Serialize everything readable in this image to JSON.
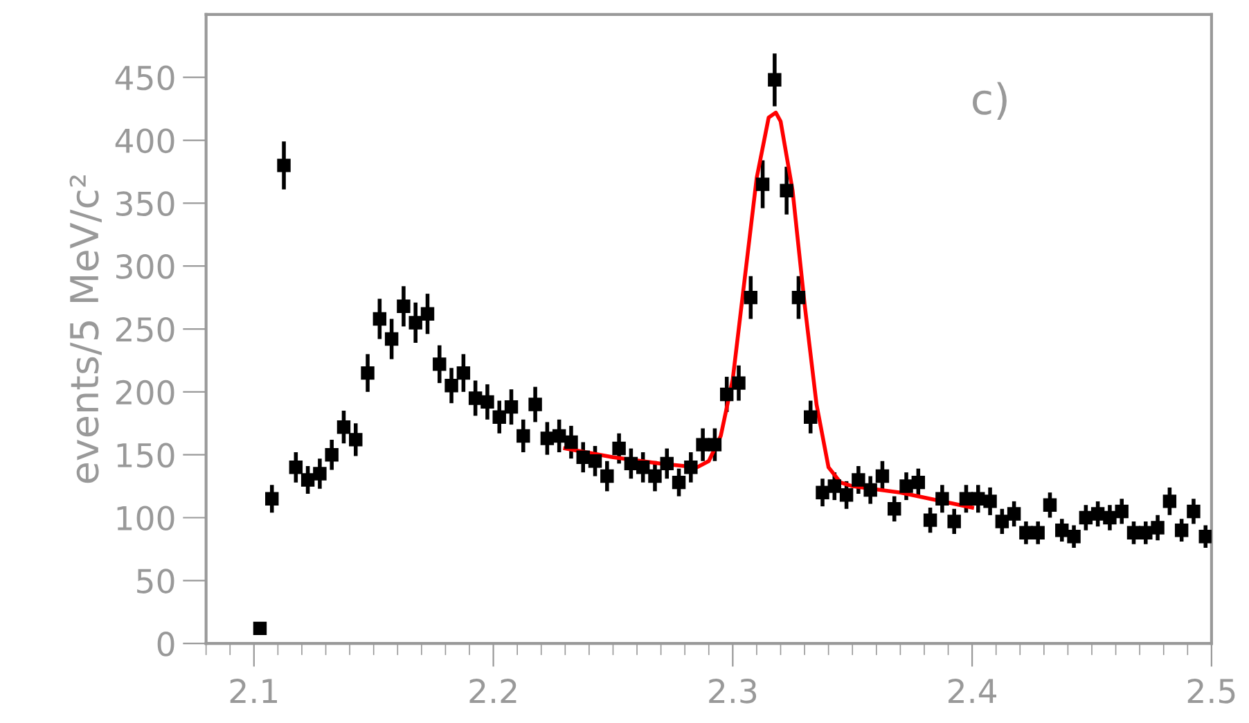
{
  "chart_data": {
    "type": "scatter",
    "ylabel": "events/5 MeV/c²",
    "annotations": [
      "c)"
    ],
    "xlim": [
      2.08,
      2.5
    ],
    "ylim": [
      0,
      500
    ],
    "xticks": [
      {
        "value": 2.1,
        "label": "2.1"
      },
      {
        "value": 2.2,
        "label": "2.2"
      },
      {
        "value": 2.3,
        "label": "2.3"
      },
      {
        "value": 2.4,
        "label": "2.4"
      },
      {
        "value": 2.5,
        "label": "2.5"
      }
    ],
    "yticks": [
      0,
      50,
      100,
      150,
      200,
      250,
      300,
      350,
      400,
      450
    ],
    "grid": false,
    "legend": false,
    "series": [
      {
        "type": "scatter",
        "color": "#000000",
        "marker": "square",
        "x": [
          2.1025,
          2.1075,
          2.1125,
          2.1175,
          2.1225,
          2.1275,
          2.1325,
          2.1375,
          2.1425,
          2.1475,
          2.1525,
          2.1575,
          2.1625,
          2.1675,
          2.1725,
          2.1775,
          2.1825,
          2.1875,
          2.1925,
          2.1975,
          2.2025,
          2.2075,
          2.2125,
          2.2175,
          2.2225,
          2.2275,
          2.2325,
          2.2375,
          2.2425,
          2.2475,
          2.2525,
          2.2575,
          2.2625,
          2.2675,
          2.2725,
          2.2775,
          2.2825,
          2.2875,
          2.2925,
          2.2975,
          2.3025,
          2.3075,
          2.3125,
          2.3175,
          2.3225,
          2.3275,
          2.3325,
          2.3375,
          2.3425,
          2.3475,
          2.3525,
          2.3575,
          2.3625,
          2.3675,
          2.3725,
          2.3775,
          2.3825,
          2.3875,
          2.3925,
          2.3975,
          2.4025,
          2.4075,
          2.4125,
          2.4175,
          2.4225,
          2.4275,
          2.4325,
          2.4375,
          2.4425,
          2.4475,
          2.4525,
          2.4575,
          2.4625,
          2.4675,
          2.4725,
          2.4775,
          2.4825,
          2.4875,
          2.4925,
          2.4975
        ],
        "values": [
          12,
          115,
          380,
          140,
          130,
          135,
          150,
          172,
          162,
          215,
          258,
          242,
          268,
          255,
          262,
          222,
          205,
          215,
          195,
          192,
          180,
          188,
          165,
          190,
          163,
          165,
          160,
          148,
          145,
          133,
          155,
          143,
          140,
          133,
          143,
          128,
          140,
          158,
          158,
          198,
          207,
          275,
          365,
          448,
          360,
          275,
          180,
          120,
          125,
          118,
          130,
          122,
          133,
          107,
          125,
          128,
          98,
          115,
          97,
          115,
          115,
          113,
          97,
          103,
          88,
          88,
          110,
          90,
          85,
          100,
          103,
          100,
          105,
          88,
          88,
          92,
          113,
          90,
          105,
          85
        ],
        "errors": [
          3,
          11,
          19,
          12,
          11,
          12,
          12,
          13,
          13,
          15,
          16,
          16,
          16,
          16,
          16,
          15,
          14,
          15,
          14,
          14,
          13,
          14,
          13,
          14,
          13,
          13,
          13,
          12,
          12,
          12,
          12,
          12,
          12,
          12,
          12,
          11,
          12,
          13,
          13,
          14,
          14,
          17,
          19,
          21,
          19,
          17,
          13,
          11,
          11,
          11,
          11,
          11,
          12,
          10,
          11,
          11,
          10,
          11,
          10,
          11,
          11,
          11,
          10,
          10,
          9,
          9,
          10,
          9,
          9,
          10,
          10,
          10,
          10,
          9,
          9,
          10,
          11,
          9,
          10,
          9
        ]
      },
      {
        "type": "line",
        "color": "#ff0000",
        "marker": "none",
        "x": [
          2.23,
          2.25,
          2.27,
          2.285,
          2.29,
          2.295,
          2.3,
          2.305,
          2.31,
          2.315,
          2.318,
          2.32,
          2.325,
          2.33,
          2.335,
          2.34,
          2.345,
          2.35,
          2.37,
          2.4
        ],
        "values": [
          155,
          148,
          143,
          140,
          145,
          165,
          210,
          290,
          370,
          418,
          422,
          415,
          360,
          270,
          190,
          140,
          128,
          125,
          120,
          108
        ]
      }
    ]
  }
}
